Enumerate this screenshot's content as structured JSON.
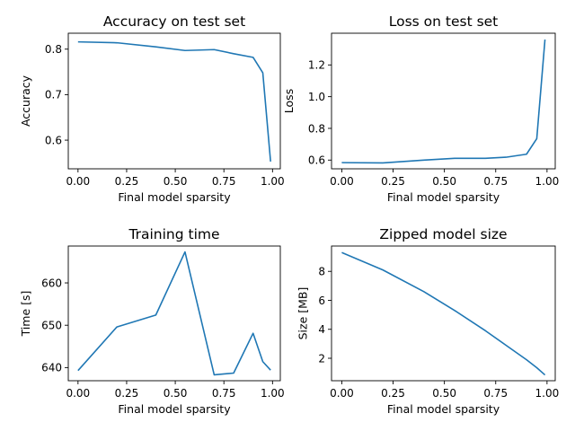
{
  "chart_data": [
    {
      "type": "line",
      "title": "Accuracy on test set",
      "xlabel": "Final model sparsity",
      "ylabel": "Accuracy",
      "xlim": [
        -0.05,
        1.04
      ],
      "ylim": [
        0.537,
        0.835
      ],
      "xticks": [
        0.0,
        0.25,
        0.5,
        0.75,
        1.0
      ],
      "xtick_labels": [
        "0.00",
        "0.25",
        "0.50",
        "0.75",
        "1.00"
      ],
      "yticks": [
        0.6,
        0.7,
        0.8
      ],
      "ytick_labels": [
        "0.6",
        "0.7",
        "0.8"
      ],
      "grid": false,
      "series": [
        {
          "color": "#1f77b4",
          "x": [
            0.0,
            0.2,
            0.4,
            0.55,
            0.7,
            0.8,
            0.9,
            0.95,
            0.99
          ],
          "y": [
            0.816,
            0.814,
            0.805,
            0.797,
            0.799,
            0.79,
            0.782,
            0.748,
            0.553
          ]
        }
      ]
    },
    {
      "type": "line",
      "title": "Loss on test set",
      "xlabel": "Final model sparsity",
      "ylabel": "Loss",
      "xlim": [
        -0.05,
        1.04
      ],
      "ylim": [
        0.545,
        1.4
      ],
      "xticks": [
        0.0,
        0.25,
        0.5,
        0.75,
        1.0
      ],
      "xtick_labels": [
        "0.00",
        "0.25",
        "0.50",
        "0.75",
        "1.00"
      ],
      "yticks": [
        0.6,
        0.8,
        1.0,
        1.2
      ],
      "ytick_labels": [
        "0.6",
        "0.8",
        "1.0",
        "1.2"
      ],
      "grid": false,
      "series": [
        {
          "color": "#1f77b4",
          "x": [
            0.0,
            0.2,
            0.4,
            0.55,
            0.7,
            0.8,
            0.9,
            0.95,
            0.99
          ],
          "y": [
            0.584,
            0.582,
            0.6,
            0.611,
            0.611,
            0.618,
            0.637,
            0.735,
            1.36
          ]
        }
      ]
    },
    {
      "type": "line",
      "title": "Training time",
      "xlabel": "Final model sparsity",
      "ylabel": "Time [s]",
      "xlim": [
        -0.05,
        1.04
      ],
      "ylim": [
        636.9,
        668.7
      ],
      "xticks": [
        0.0,
        0.25,
        0.5,
        0.75,
        1.0
      ],
      "xtick_labels": [
        "0.00",
        "0.25",
        "0.50",
        "0.75",
        "1.00"
      ],
      "yticks": [
        640,
        650,
        660
      ],
      "ytick_labels": [
        "640",
        "650",
        "660"
      ],
      "grid": false,
      "series": [
        {
          "color": "#1f77b4",
          "x": [
            0.0,
            0.2,
            0.4,
            0.55,
            0.7,
            0.8,
            0.9,
            0.95,
            0.99
          ],
          "y": [
            639.3,
            649.6,
            652.4,
            667.3,
            638.3,
            638.7,
            648.1,
            641.4,
            639.4
          ]
        }
      ]
    },
    {
      "type": "line",
      "title": "Zipped model size",
      "xlabel": "Final model sparsity",
      "ylabel": "Size [MB]",
      "xlim": [
        -0.05,
        1.04
      ],
      "ylim": [
        0.45,
        9.75
      ],
      "xticks": [
        0.0,
        0.25,
        0.5,
        0.75,
        1.0
      ],
      "xtick_labels": [
        "0.00",
        "0.25",
        "0.50",
        "0.75",
        "1.00"
      ],
      "yticks": [
        2,
        4,
        6,
        8
      ],
      "ytick_labels": [
        "2",
        "4",
        "6",
        "8"
      ],
      "grid": false,
      "series": [
        {
          "color": "#1f77b4",
          "x": [
            0.0,
            0.2,
            0.4,
            0.55,
            0.7,
            0.8,
            0.9,
            0.95,
            0.99
          ],
          "y": [
            9.3,
            8.1,
            6.6,
            5.3,
            3.9,
            2.9,
            1.9,
            1.35,
            0.85
          ]
        }
      ]
    }
  ]
}
